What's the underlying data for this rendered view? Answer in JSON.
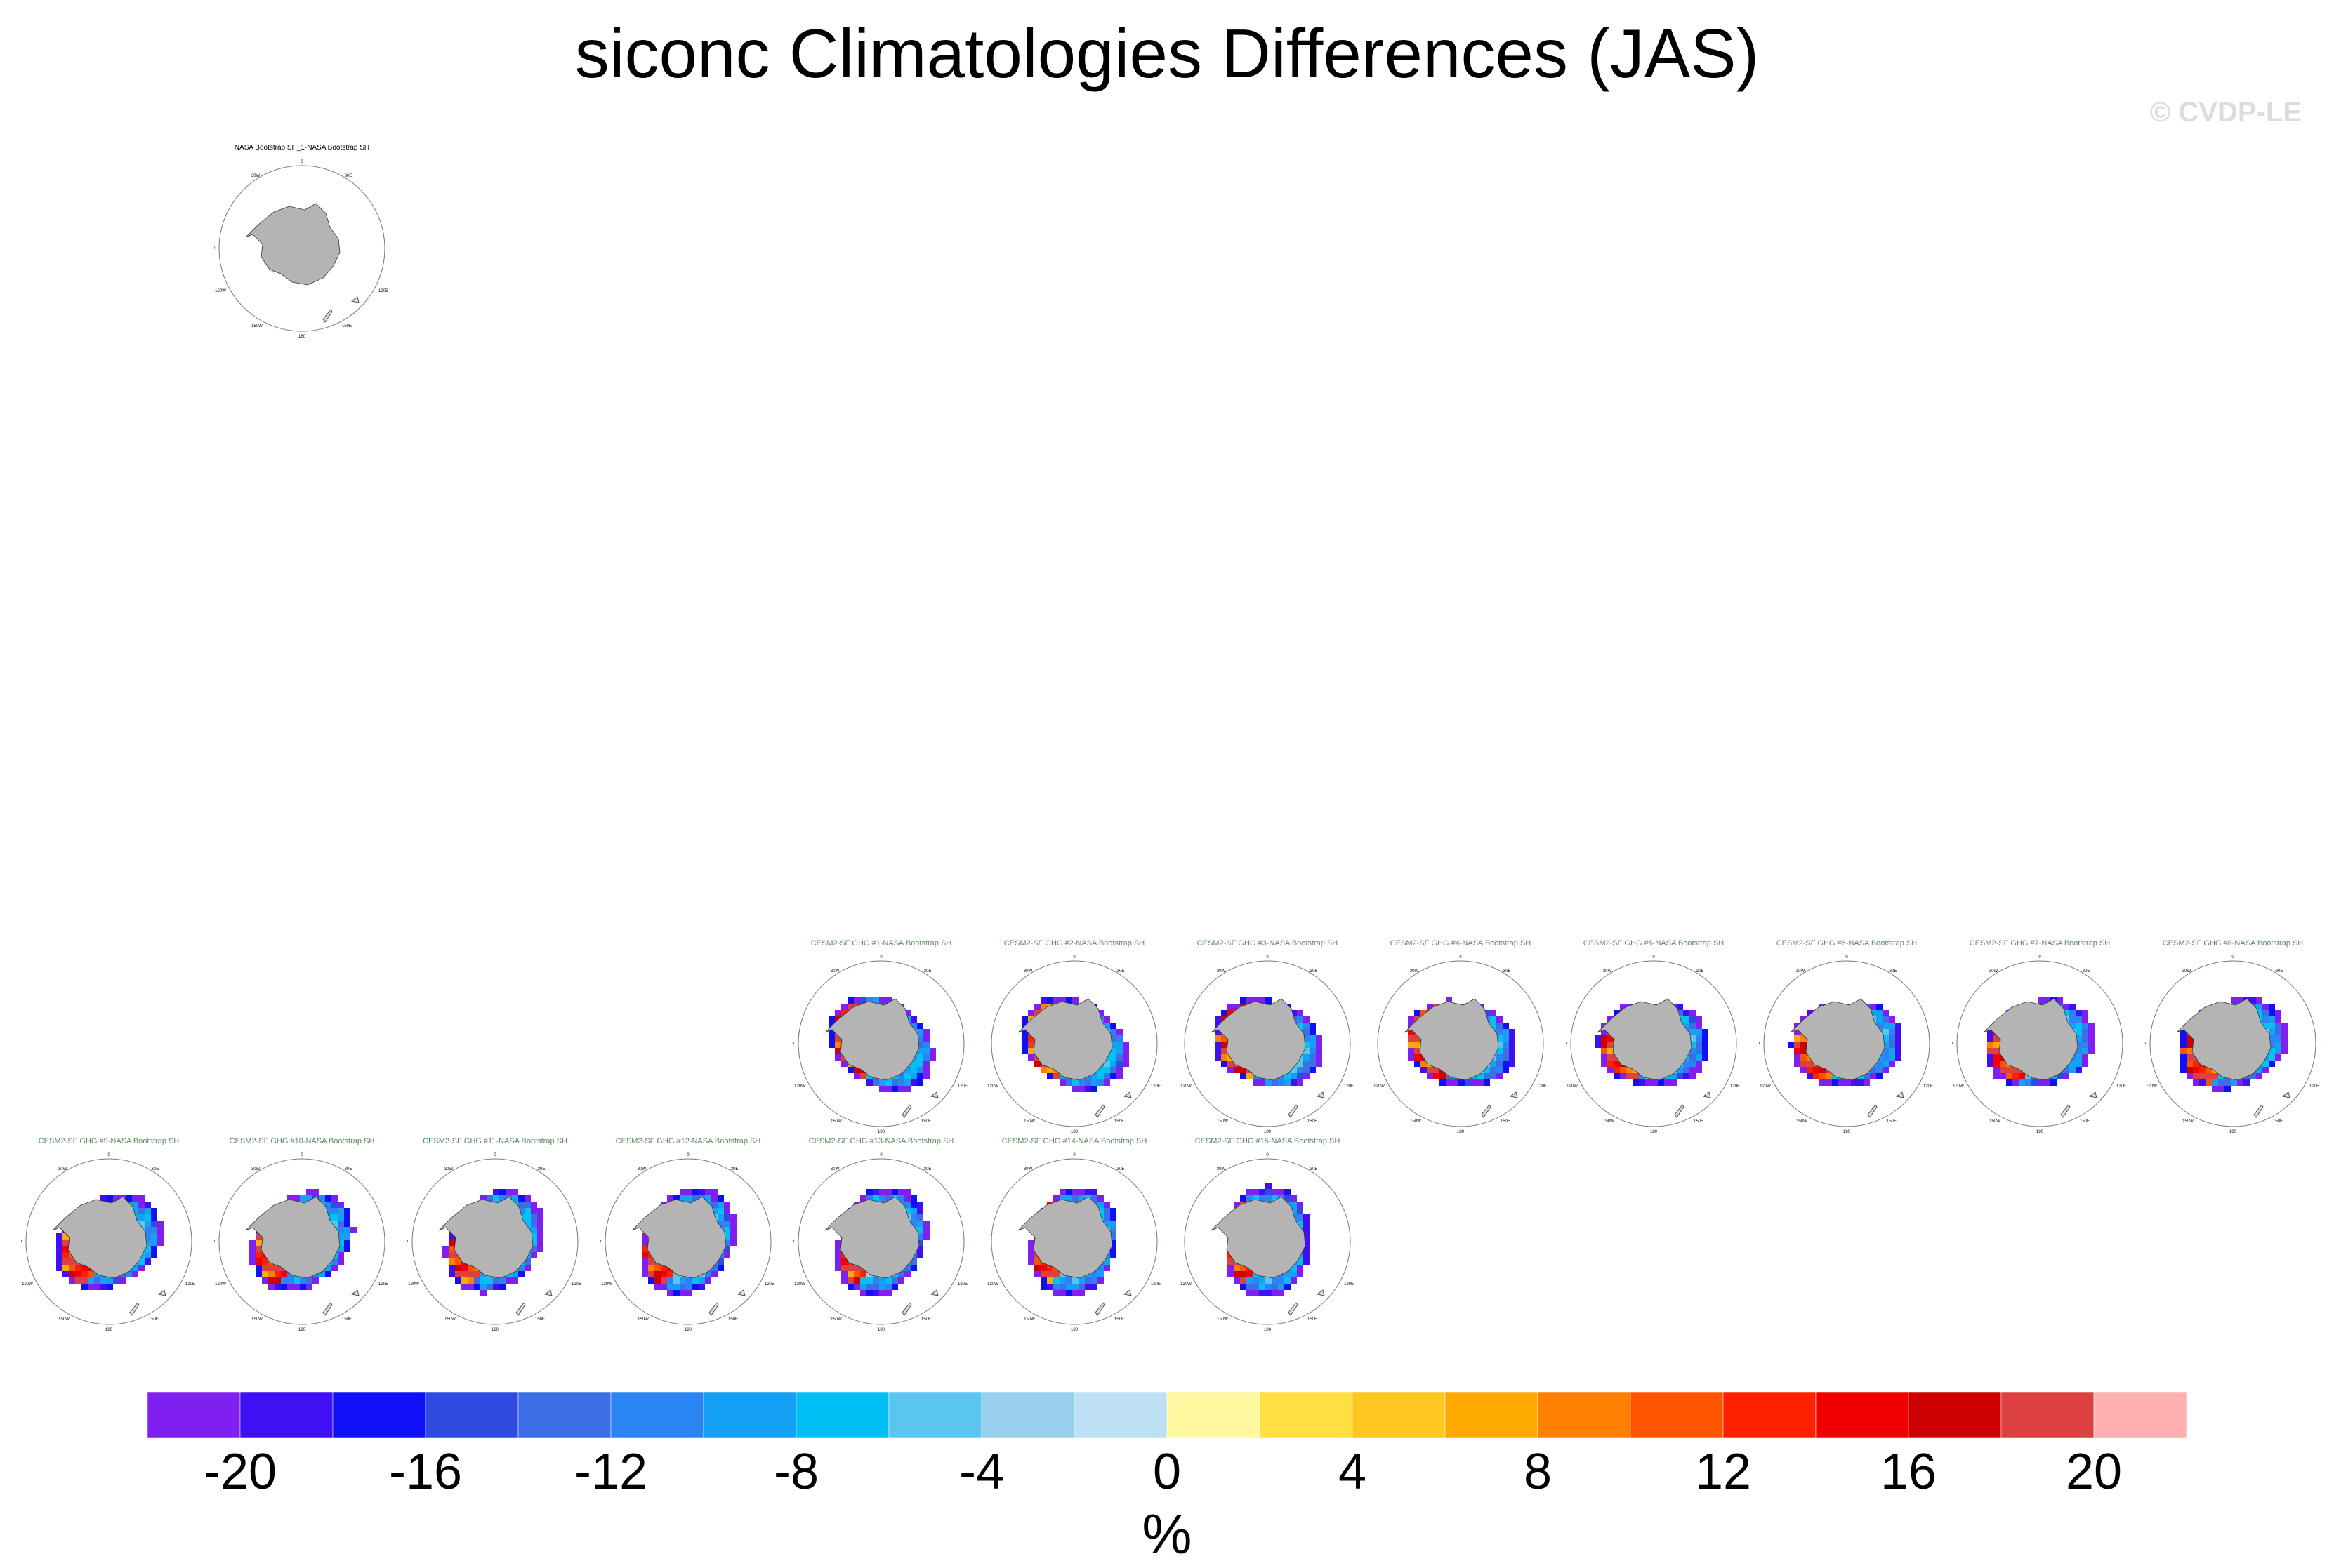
{
  "title": "siconc Climatologies Differences (JAS)",
  "watermark": "© CVDP-LE",
  "panels": [
    {
      "title": "NASA Bootstrap SH_1-NASA Bootstrap SH",
      "kind": "obs"
    },
    {
      "title": "CESM2-SF GHG #1-NASA Bootstrap SH",
      "kind": "model"
    },
    {
      "title": "CESM2-SF GHG #2-NASA Bootstrap SH",
      "kind": "model"
    },
    {
      "title": "CESM2-SF GHG #3-NASA Bootstrap SH",
      "kind": "model"
    },
    {
      "title": "CESM2-SF GHG #4-NASA Bootstrap SH",
      "kind": "model"
    },
    {
      "title": "CESM2-SF GHG #5-NASA Bootstrap SH",
      "kind": "model"
    },
    {
      "title": "CESM2-SF GHG #6-NASA Bootstrap SH",
      "kind": "model"
    },
    {
      "title": "CESM2-SF GHG #7-NASA Bootstrap SH",
      "kind": "model"
    },
    {
      "title": "CESM2-SF GHG #8-NASA Bootstrap SH",
      "kind": "model"
    },
    {
      "title": "CESM2-SF GHG #9-NASA Bootstrap SH",
      "kind": "model"
    },
    {
      "title": "CESM2-SF GHG #10-NASA Bootstrap SH",
      "kind": "model"
    },
    {
      "title": "CESM2-SF GHG #11-NASA Bootstrap SH",
      "kind": "model"
    },
    {
      "title": "CESM2-SF GHG #12-NASA Bootstrap SH",
      "kind": "model"
    },
    {
      "title": "CESM2-SF GHG #13-NASA Bootstrap SH",
      "kind": "model"
    },
    {
      "title": "CESM2-SF GHG #14-NASA Bootstrap SH",
      "kind": "model"
    },
    {
      "title": "CESM2-SF GHG #15-NASA Bootstrap SH",
      "kind": "model"
    }
  ],
  "map_labels": {
    "lon_top": "0",
    "lon_bottom": "180",
    "lon_left": "90W",
    "lon_right": "90E",
    "lon_tl": "30W",
    "lon_tr": "30E",
    "lon_bl": "120W",
    "lon_br": "120E",
    "lon_bll": "150W",
    "lon_brr": "150E"
  },
  "chart_data": {
    "type": "heatmap",
    "variable": "siconc",
    "season": "JAS",
    "projection": "south polar stereographic",
    "colorbar": {
      "unit": "%",
      "boundaries": [
        -22,
        -20,
        -18,
        -16,
        -14,
        -12,
        -10,
        -8,
        -6,
        -4,
        -2,
        0,
        2,
        4,
        6,
        8,
        10,
        12,
        14,
        16,
        18,
        20,
        22
      ],
      "tick_labels": [
        "-20",
        "-16",
        "-12",
        "-8",
        "-4",
        "0",
        "4",
        "8",
        "12",
        "16",
        "20"
      ],
      "tick_values": [
        -20,
        -16,
        -12,
        -8,
        -4,
        0,
        4,
        8,
        12,
        16,
        20
      ],
      "colors": [
        "#7f1ff0",
        "#4010f5",
        "#1010f8",
        "#2f4be0",
        "#3c6ee6",
        "#2a85f2",
        "#14a0f5",
        "#00c0f5",
        "#5ac6f0",
        "#98cfec",
        "#bde0f4",
        "#fff7a0",
        "#ffe040",
        "#ffc820",
        "#ffaa00",
        "#ff8000",
        "#ff5500",
        "#ff2000",
        "#f00000",
        "#cc0000",
        "#dd4040",
        "#ffb0b0"
      ]
    }
  }
}
